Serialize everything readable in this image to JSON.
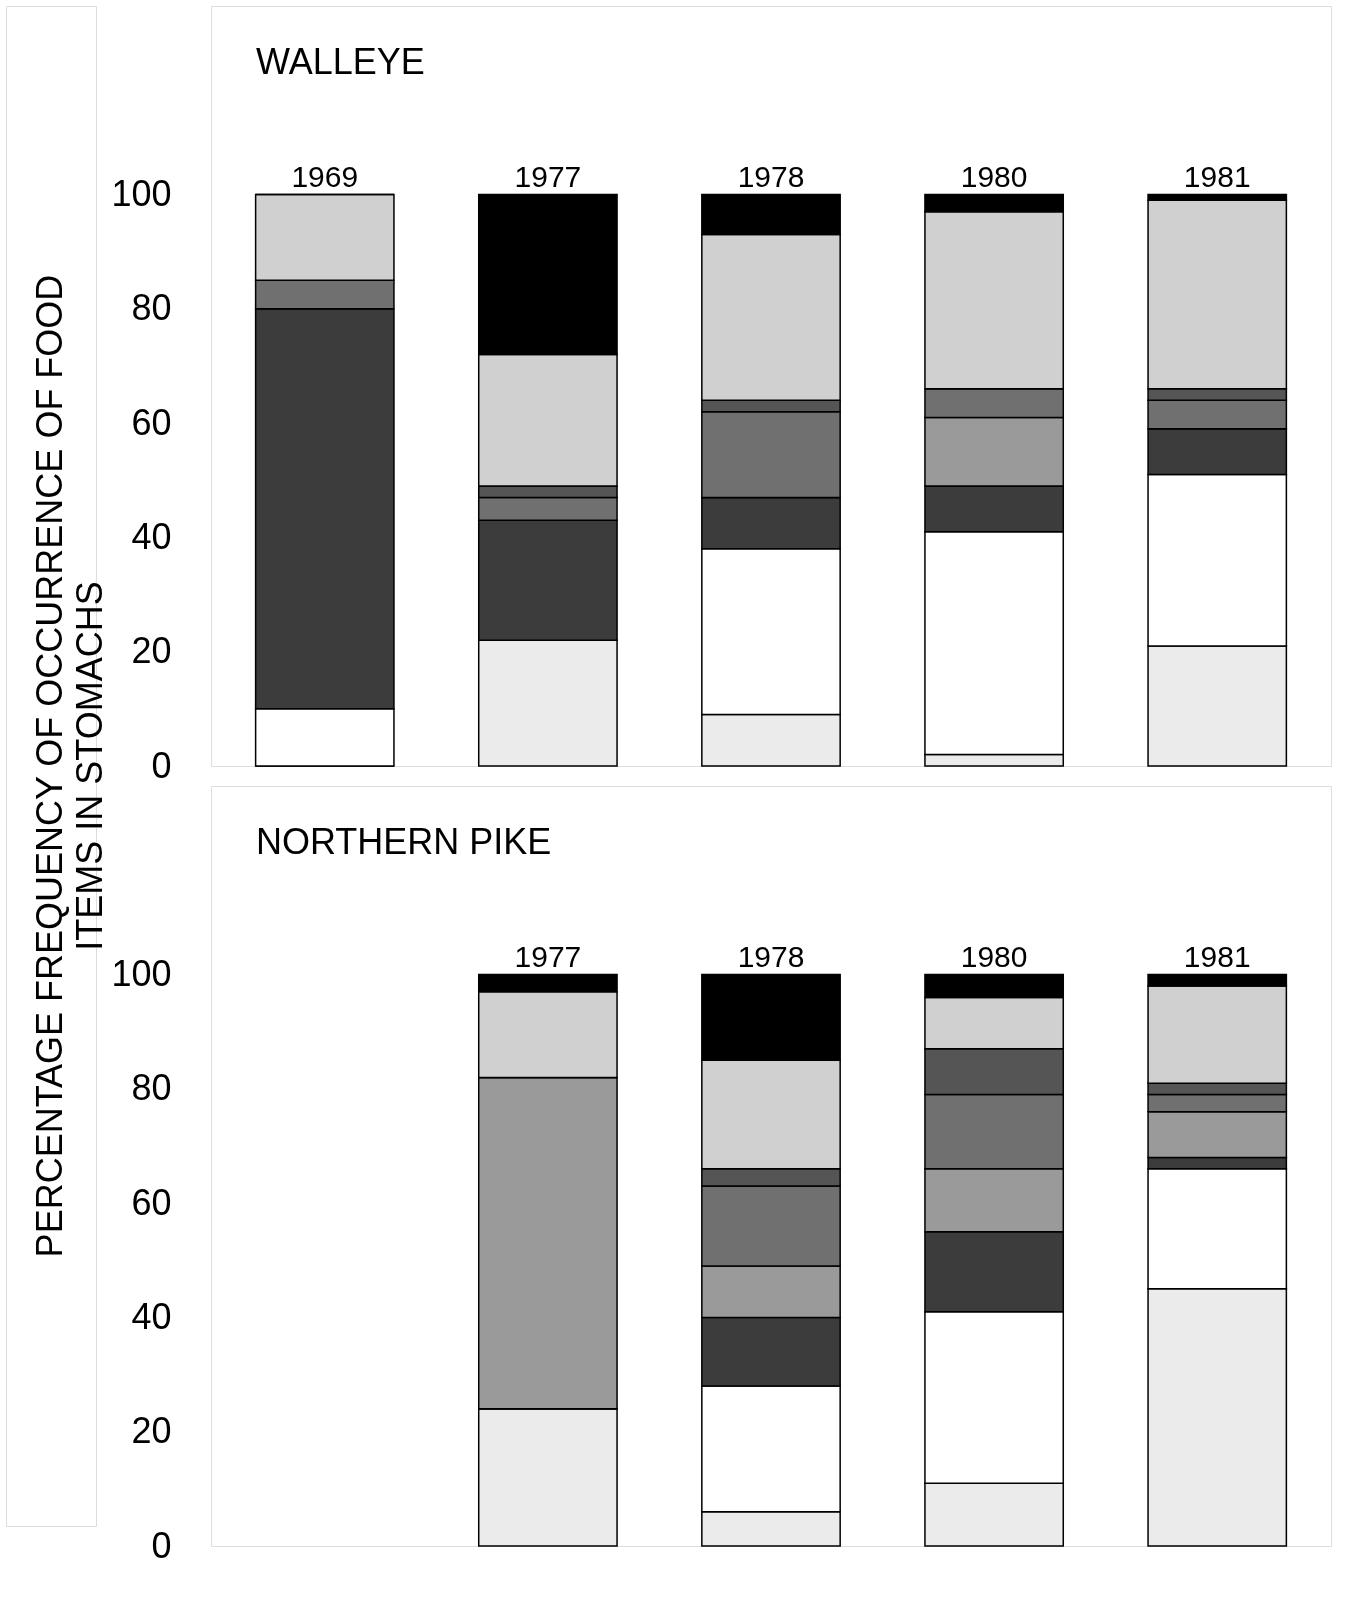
{
  "chart_data": [
    {
      "type": "bar",
      "title": "WALLEYE",
      "ylabel": "PERCENTAGE FREQUENCY OF OCCURRENCE OF FOOD\nITEMS IN STOMACHS",
      "stacked": true,
      "categories": [
        "1969",
        "1977",
        "1978",
        "1980",
        "1981"
      ],
      "ylim": [
        0,
        133
      ],
      "yticks": [
        0,
        20,
        40,
        60,
        80,
        100
      ],
      "tick_labels": "y",
      "grid": false,
      "legend": false,
      "series": [
        {
          "color": "#ebebeb",
          "values": [
            0,
            22,
            9,
            2,
            21
          ]
        },
        {
          "color": "#ffffff",
          "values": [
            10,
            0,
            29,
            39,
            30
          ]
        },
        {
          "color": "#3c3c3c",
          "values": [
            70,
            21,
            9,
            8,
            8
          ]
        },
        {
          "color": "#9a9a9a",
          "values": [
            0,
            0,
            0,
            12,
            0
          ]
        },
        {
          "color": "#707070",
          "values": [
            5,
            4,
            15,
            5,
            5
          ]
        },
        {
          "color": "#555555",
          "values": [
            0,
            2,
            2,
            0,
            2
          ]
        },
        {
          "color": "#d0d0d0",
          "values": [
            15,
            23,
            29,
            31,
            33
          ]
        },
        {
          "color": "#000000",
          "values": [
            0,
            28,
            7,
            3,
            1
          ]
        }
      ]
    },
    {
      "type": "bar",
      "title": "NORTHERN PIKE",
      "stacked": true,
      "categories": [
        null,
        "1977",
        "1978",
        "1980",
        "1981"
      ],
      "ylim": [
        0,
        133
      ],
      "yticks": [
        0,
        20,
        40,
        60,
        80,
        100
      ],
      "tick_labels": "y",
      "grid": false,
      "legend": false,
      "series": [
        {
          "color": "#ebebeb",
          "values": [
            null,
            24,
            6,
            11,
            45
          ]
        },
        {
          "color": "#ffffff",
          "values": [
            null,
            0,
            22,
            30,
            21
          ]
        },
        {
          "color": "#3c3c3c",
          "values": [
            null,
            0,
            12,
            14,
            2
          ]
        },
        {
          "color": "#9a9a9a",
          "values": [
            null,
            58,
            9,
            11,
            8
          ]
        },
        {
          "color": "#707070",
          "values": [
            null,
            0,
            14,
            13,
            3
          ]
        },
        {
          "color": "#555555",
          "values": [
            null,
            0,
            3,
            8,
            2
          ]
        },
        {
          "color": "#d0d0d0",
          "values": [
            null,
            15,
            19,
            9,
            17
          ]
        },
        {
          "color": "#000000",
          "values": [
            null,
            3,
            15,
            4,
            2
          ]
        }
      ]
    }
  ]
}
